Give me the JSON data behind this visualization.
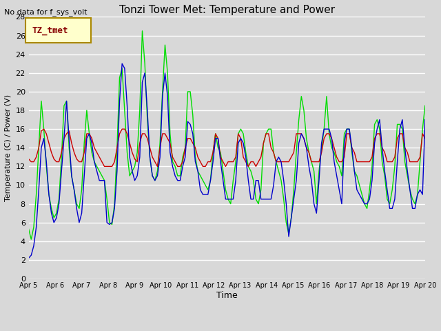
{
  "title": "Tonzi Tower Met: Temperature and Power",
  "top_left_text": "No data for f_sys_volt",
  "xlabel": "Time",
  "ylabel": "Temperature (C) / Power (V)",
  "ylim": [
    0,
    28
  ],
  "yticks": [
    0,
    2,
    4,
    6,
    8,
    10,
    12,
    14,
    16,
    18,
    20,
    22,
    24,
    26,
    28
  ],
  "xtick_labels": [
    "Apr 5",
    "Apr 6",
    "Apr 7",
    "Apr 8",
    "Apr 9",
    "Apr 10",
    "Apr 11",
    "Apr 12",
    "Apr 13",
    "Apr 14",
    "Apr 15",
    "Apr 16",
    "Apr 17",
    "Apr 18",
    "Apr 19",
    "Apr 20"
  ],
  "bg_color": "#d8d8d8",
  "plot_bg_color": "#d8d8d8",
  "grid_color": "#ffffff",
  "legend_label": "TZ_tmet",
  "legend_bg": "#ffffcc",
  "legend_border": "#aa8800",
  "line_colors": {
    "panel": "#00dd00",
    "battery": "#cc0000",
    "air": "#0000cc"
  },
  "panel_T": [
    5.3,
    4.2,
    5.5,
    9.0,
    14.0,
    19.0,
    16.0,
    12.0,
    9.0,
    7.5,
    6.5,
    7.0,
    8.5,
    13.0,
    18.5,
    19.0,
    14.0,
    11.0,
    9.5,
    8.0,
    7.5,
    9.5,
    14.5,
    18.0,
    15.5,
    13.5,
    12.5,
    12.0,
    11.5,
    11.0,
    10.5,
    8.5,
    6.0,
    5.8,
    8.0,
    14.0,
    21.5,
    22.5,
    18.0,
    13.5,
    11.0,
    11.5,
    12.0,
    13.5,
    18.0,
    26.5,
    23.0,
    17.0,
    13.0,
    11.0,
    10.5,
    11.5,
    14.5,
    20.0,
    25.0,
    22.0,
    15.5,
    12.5,
    12.0,
    11.0,
    11.0,
    13.0,
    14.0,
    20.0,
    20.0,
    17.5,
    13.0,
    11.5,
    11.0,
    10.5,
    10.0,
    9.5,
    10.5,
    13.5,
    15.5,
    14.0,
    13.5,
    11.5,
    9.5,
    8.5,
    8.0,
    10.5,
    12.5,
    15.5,
    16.0,
    15.5,
    13.5,
    12.0,
    11.5,
    10.5,
    8.5,
    8.0,
    9.5,
    14.5,
    15.5,
    16.0,
    16.0,
    13.5,
    12.5,
    11.5,
    10.5,
    8.5,
    6.0,
    4.8,
    6.5,
    9.5,
    13.5,
    17.0,
    19.5,
    18.0,
    15.0,
    13.5,
    12.5,
    11.5,
    8.0,
    11.5,
    14.0,
    16.0,
    19.5,
    15.5,
    14.0,
    13.5,
    12.5,
    12.0,
    11.0,
    15.5,
    16.0,
    16.0,
    13.5,
    11.5,
    11.0,
    10.0,
    9.0,
    8.0,
    7.5,
    9.5,
    12.0,
    16.5,
    17.0,
    16.0,
    12.5,
    11.0,
    8.5,
    8.0,
    9.5,
    12.0,
    16.5,
    16.5,
    16.0,
    12.5,
    11.0,
    9.5,
    8.5,
    8.0,
    9.0,
    12.5,
    16.0,
    18.5
  ],
  "battery_V": [
    12.8,
    12.5,
    12.5,
    13.0,
    14.0,
    15.8,
    16.0,
    15.5,
    14.5,
    13.5,
    12.8,
    12.5,
    12.5,
    13.5,
    15.0,
    15.5,
    15.8,
    14.5,
    13.5,
    12.8,
    12.5,
    12.5,
    13.5,
    15.5,
    15.5,
    15.0,
    14.0,
    13.5,
    13.0,
    12.5,
    12.0,
    12.0,
    12.0,
    12.0,
    12.5,
    14.0,
    15.5,
    16.0,
    16.0,
    15.5,
    14.5,
    13.5,
    12.8,
    12.5,
    14.5,
    15.5,
    15.5,
    15.0,
    14.0,
    13.0,
    12.5,
    12.0,
    14.0,
    15.5,
    15.5,
    15.0,
    14.5,
    13.0,
    12.5,
    12.0,
    12.0,
    12.5,
    14.0,
    15.0,
    15.0,
    14.5,
    14.0,
    13.0,
    12.5,
    12.0,
    12.0,
    12.5,
    12.5,
    13.5,
    15.5,
    15.0,
    13.0,
    12.5,
    12.0,
    12.5,
    12.5,
    12.5,
    13.0,
    15.5,
    15.0,
    13.0,
    12.5,
    12.0,
    12.5,
    12.5,
    12.0,
    12.5,
    13.0,
    14.5,
    15.5,
    15.5,
    14.0,
    13.5,
    12.5,
    12.5,
    12.5,
    12.5,
    12.5,
    12.5,
    13.0,
    13.5,
    15.5,
    15.5,
    15.5,
    15.0,
    14.0,
    13.5,
    12.5,
    12.5,
    12.5,
    12.5,
    13.5,
    15.0,
    15.5,
    15.5,
    15.0,
    14.0,
    13.0,
    12.5,
    12.5,
    13.0,
    15.5,
    15.5,
    14.0,
    13.5,
    12.5,
    12.5,
    12.5,
    12.5,
    12.5,
    12.5,
    13.0,
    15.0,
    15.5,
    15.5,
    14.0,
    13.5,
    12.5,
    12.5,
    12.5,
    13.0,
    15.0,
    15.5,
    15.5,
    14.0,
    13.5,
    12.5,
    12.5,
    12.5,
    12.5,
    13.0,
    15.5,
    15.0
  ],
  "air_T": [
    2.2,
    2.5,
    3.5,
    5.5,
    9.5,
    14.0,
    15.0,
    12.5,
    9.0,
    7.0,
    6.0,
    6.5,
    8.0,
    11.5,
    15.0,
    19.0,
    15.0,
    11.0,
    9.5,
    7.5,
    6.0,
    7.0,
    11.0,
    15.0,
    15.5,
    14.5,
    12.5,
    11.5,
    10.5,
    10.5,
    10.5,
    6.0,
    5.8,
    6.0,
    7.5,
    11.5,
    19.0,
    23.0,
    22.5,
    18.5,
    13.0,
    11.5,
    10.5,
    11.0,
    13.0,
    21.0,
    22.0,
    18.0,
    13.0,
    11.0,
    10.5,
    11.0,
    13.0,
    19.5,
    22.0,
    19.5,
    13.5,
    12.0,
    11.0,
    10.5,
    10.5,
    12.0,
    13.0,
    16.8,
    16.5,
    15.5,
    12.5,
    11.5,
    9.5,
    9.0,
    9.0,
    9.0,
    10.5,
    12.5,
    15.0,
    15.0,
    12.5,
    10.5,
    8.5,
    8.5,
    8.5,
    8.5,
    10.5,
    14.5,
    15.0,
    14.5,
    13.0,
    10.5,
    8.5,
    8.5,
    10.5,
    10.5,
    8.5,
    8.5,
    8.5,
    8.5,
    8.5,
    10.0,
    12.5,
    13.0,
    12.5,
    10.5,
    8.0,
    4.5,
    6.5,
    8.5,
    10.5,
    14.5,
    15.5,
    15.0,
    14.0,
    12.0,
    10.5,
    8.0,
    7.0,
    10.5,
    14.5,
    16.0,
    16.0,
    16.0,
    15.0,
    12.5,
    11.0,
    9.5,
    8.0,
    14.5,
    16.0,
    16.0,
    14.0,
    11.5,
    9.5,
    9.0,
    8.5,
    8.0,
    8.0,
    8.5,
    10.5,
    14.5,
    16.0,
    17.0,
    14.0,
    11.5,
    9.5,
    7.5,
    7.5,
    8.5,
    12.5,
    16.0,
    17.0,
    14.0,
    11.5,
    9.5,
    7.5,
    7.5,
    9.0,
    9.5,
    9.0,
    17.0
  ]
}
